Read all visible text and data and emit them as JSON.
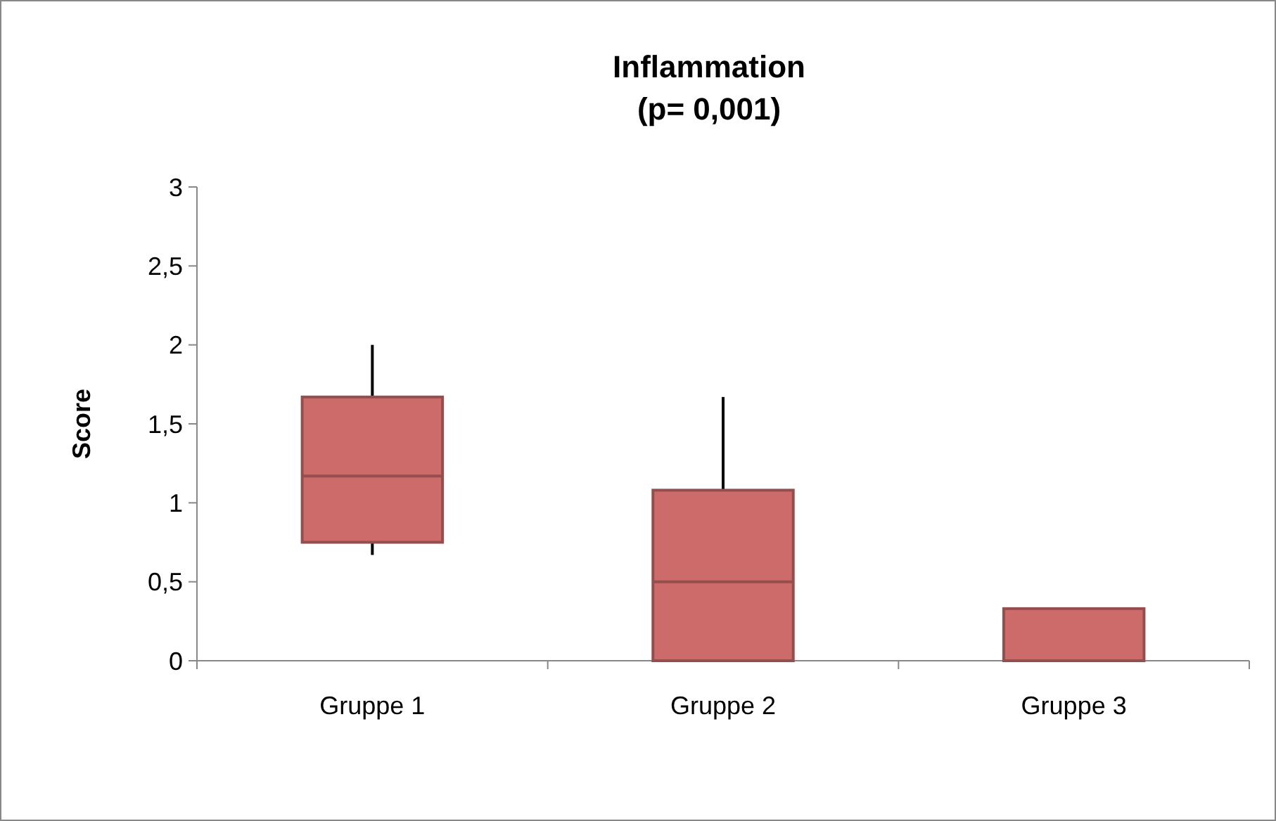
{
  "chart_data": {
    "type": "box",
    "title": "Inflammation",
    "subtitle": "(p= 0,001)",
    "ylabel": "Score",
    "categories": [
      "Gruppe 1",
      "Gruppe 2",
      "Gruppe 3"
    ],
    "color": "#cd6b6b",
    "ylim": [
      0,
      3
    ],
    "yticks": [
      0,
      {
        "value": 0.5,
        "label": "0,5"
      },
      1,
      {
        "value": 1.5,
        "label": "1,5"
      },
      2,
      {
        "value": 2.5,
        "label": "2,5"
      },
      3
    ],
    "grid": false,
    "boxes": [
      {
        "low": 0.67,
        "q1": 0.75,
        "median": 1.17,
        "q3": 1.67,
        "high": 2
      },
      {
        "low": 0,
        "q1": 0,
        "median": 0.5,
        "q3": 1.08,
        "high": 1.67
      },
      {
        "low": 0,
        "q1": 0,
        "median": 0,
        "q3": 0.33,
        "high": 0.33
      }
    ]
  }
}
